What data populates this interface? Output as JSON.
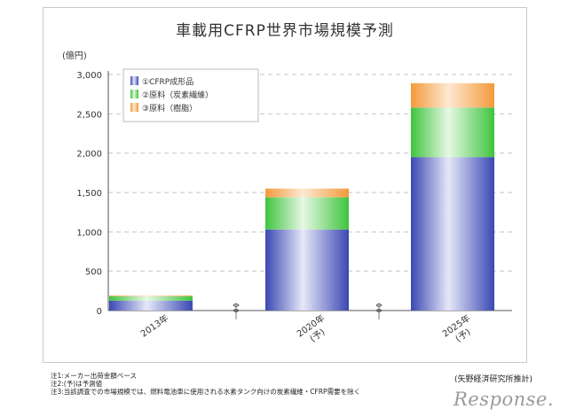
{
  "chart_data": {
    "type": "bar",
    "stacked": true,
    "title": "車載用CFRP世界市場規模予測",
    "unit_label": "(億円)",
    "categories": [
      "2013年",
      "2020年\n(予)",
      "2025年\n(予)"
    ],
    "ylim": [
      0,
      3000
    ],
    "yticks": [
      "0",
      "500",
      "1,000",
      "1,500",
      "2,000",
      "2,500",
      "3,000"
    ],
    "grid": true,
    "legend_position": "top-left",
    "series": [
      {
        "name": "①CFRP成形品",
        "values": [
          125,
          1030,
          1950
        ],
        "color": "#4a59c0"
      },
      {
        "name": "②原料（炭素繊維）",
        "values": [
          55,
          410,
          630
        ],
        "color": "#4fce4f"
      },
      {
        "name": "③原料（樹脂）",
        "values": [
          10,
          110,
          310
        ],
        "color": "#f6a74f"
      }
    ]
  },
  "notes": [
    "注1:メーカー出荷金額ベース",
    "注2:(予)は予測値",
    "注3:当該調査での市場規模では、燃料電池車に使用される水素タンク向けの炭素繊維・CFRP需要を除く"
  ],
  "source": "(矢野経済研究所推計)",
  "logo": "Response."
}
